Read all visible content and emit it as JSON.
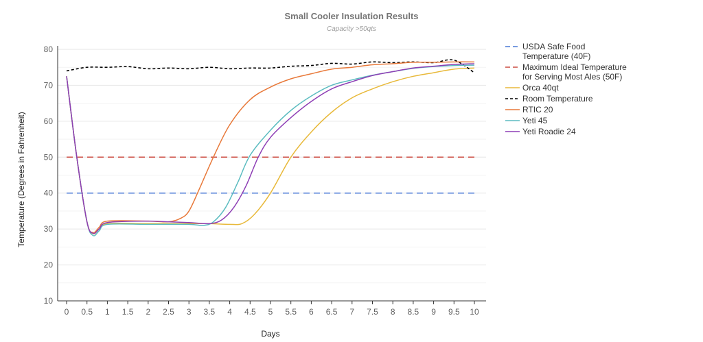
{
  "chart_data": {
    "type": "line",
    "title": "Small Cooler Insulation Results",
    "subtitle": "Capacity >50qts",
    "xlabel": "Days",
    "ylabel": "Temperature (Degrees in Fahrenheit)",
    "xlim": [
      0,
      10
    ],
    "ylim": [
      10,
      80
    ],
    "x_ticks": [
      "0",
      "0.5",
      "1",
      "1.5",
      "2",
      "2.5",
      "3",
      "3.5",
      "4",
      "4.5",
      "5",
      "5.5",
      "6",
      "6.5",
      "7",
      "7.5",
      "8",
      "8.5",
      "9",
      "9.5",
      "10"
    ],
    "y_ticks": [
      "10",
      "20",
      "30",
      "40",
      "50",
      "60",
      "70",
      "80"
    ],
    "grid": true,
    "legend_position": "right",
    "series": [
      {
        "name": "USDA Safe Food Temperature (40F)",
        "legend_lines": [
          "USDA Safe Food",
          "Temperature (40F)"
        ],
        "color": "#4a78d6",
        "dash": "dashed",
        "points": [
          [
            0,
            40
          ],
          [
            10,
            40
          ]
        ]
      },
      {
        "name": "Maximum Ideal Temperature for Serving Most Ales (50F)",
        "legend_lines": [
          "Maximum Ideal Temperature",
          "for Serving Most Ales (50F)"
        ],
        "color": "#cc4b40",
        "dash": "dashed",
        "points": [
          [
            0,
            50
          ],
          [
            10,
            50
          ]
        ]
      },
      {
        "name": "Orca 40qt",
        "legend_lines": [
          "Orca 40qt"
        ],
        "color": "#e8b93a",
        "dash": "solid",
        "points": [
          [
            0,
            72.5
          ],
          [
            0.25,
            50
          ],
          [
            0.5,
            32
          ],
          [
            0.65,
            28.7
          ],
          [
            0.8,
            30
          ],
          [
            1,
            31.5
          ],
          [
            2,
            31.5
          ],
          [
            3,
            31.5
          ],
          [
            3.5,
            31.5
          ],
          [
            4,
            31.3
          ],
          [
            4.3,
            31.5
          ],
          [
            4.6,
            34
          ],
          [
            5,
            40
          ],
          [
            5.5,
            50
          ],
          [
            6,
            57
          ],
          [
            6.5,
            62.5
          ],
          [
            7,
            66.5
          ],
          [
            7.5,
            69
          ],
          [
            8,
            71
          ],
          [
            8.5,
            72.5
          ],
          [
            9,
            73.5
          ],
          [
            9.5,
            74.5
          ],
          [
            10,
            74.8
          ]
        ]
      },
      {
        "name": "Room Temperature",
        "legend_lines": [
          "Room Temperature"
        ],
        "color": "#000000",
        "dash": "dotted",
        "points": [
          [
            0,
            74
          ],
          [
            0.5,
            75
          ],
          [
            1,
            75
          ],
          [
            1.5,
            75.2
          ],
          [
            2,
            74.6
          ],
          [
            2.5,
            74.8
          ],
          [
            3,
            74.6
          ],
          [
            3.5,
            75
          ],
          [
            4,
            74.6
          ],
          [
            4.5,
            74.8
          ],
          [
            5,
            74.8
          ],
          [
            5.5,
            75.3
          ],
          [
            6,
            75.5
          ],
          [
            6.5,
            76.1
          ],
          [
            7,
            75.9
          ],
          [
            7.5,
            76.5
          ],
          [
            8,
            76.3
          ],
          [
            8.5,
            76.5
          ],
          [
            9,
            76.3
          ],
          [
            9.5,
            77
          ],
          [
            10,
            73.5
          ]
        ]
      },
      {
        "name": "RTIC 20",
        "legend_lines": [
          "RTIC 20"
        ],
        "color": "#e8793a",
        "dash": "solid",
        "points": [
          [
            0,
            72.5
          ],
          [
            0.25,
            50
          ],
          [
            0.5,
            32
          ],
          [
            0.65,
            29
          ],
          [
            0.8,
            30.5
          ],
          [
            1,
            32.2
          ],
          [
            2,
            32.2
          ],
          [
            2.5,
            32
          ],
          [
            2.8,
            33
          ],
          [
            3,
            35
          ],
          [
            3.25,
            41
          ],
          [
            3.6,
            50
          ],
          [
            4,
            59
          ],
          [
            4.5,
            66
          ],
          [
            5,
            69.5
          ],
          [
            5.5,
            71.8
          ],
          [
            6,
            73.2
          ],
          [
            6.5,
            74.5
          ],
          [
            7,
            75
          ],
          [
            7.5,
            75.7
          ],
          [
            8,
            76
          ],
          [
            8.5,
            76.4
          ],
          [
            9,
            76.4
          ],
          [
            9.5,
            76.5
          ],
          [
            10,
            76.5
          ]
        ]
      },
      {
        "name": "Yeti 45",
        "legend_lines": [
          "Yeti 45"
        ],
        "color": "#5bbcc0",
        "dash": "solid",
        "points": [
          [
            0,
            72.5
          ],
          [
            0.25,
            50
          ],
          [
            0.5,
            32
          ],
          [
            0.65,
            28.2
          ],
          [
            0.8,
            29.5
          ],
          [
            1,
            31.3
          ],
          [
            2,
            31.3
          ],
          [
            3,
            31.3
          ],
          [
            3.35,
            31
          ],
          [
            3.6,
            32
          ],
          [
            3.9,
            36
          ],
          [
            4.2,
            43
          ],
          [
            4.5,
            50.5
          ],
          [
            5,
            57.5
          ],
          [
            5.5,
            63
          ],
          [
            6,
            67
          ],
          [
            6.5,
            70
          ],
          [
            7,
            71.5
          ],
          [
            7.5,
            72.8
          ],
          [
            8,
            73.8
          ],
          [
            8.5,
            74.7
          ],
          [
            9,
            75.2
          ],
          [
            9.5,
            75.5
          ],
          [
            10,
            75.6
          ]
        ]
      },
      {
        "name": "Yeti Roadie 24",
        "legend_lines": [
          "Yeti Roadie 24"
        ],
        "color": "#8e3fb5",
        "dash": "solid",
        "points": [
          [
            0,
            72.5
          ],
          [
            0.25,
            50
          ],
          [
            0.5,
            32
          ],
          [
            0.65,
            28.8
          ],
          [
            0.8,
            30
          ],
          [
            1,
            31.8
          ],
          [
            2,
            32.2
          ],
          [
            2.5,
            32
          ],
          [
            3,
            31.8
          ],
          [
            3.5,
            31.5
          ],
          [
            3.8,
            32.5
          ],
          [
            4.1,
            36
          ],
          [
            4.4,
            42
          ],
          [
            4.7,
            50
          ],
          [
            5,
            55.5
          ],
          [
            5.5,
            61
          ],
          [
            6,
            65.5
          ],
          [
            6.5,
            69
          ],
          [
            7,
            71
          ],
          [
            7.5,
            72.7
          ],
          [
            8,
            73.8
          ],
          [
            8.5,
            74.8
          ],
          [
            9,
            75.3
          ],
          [
            9.5,
            75.8
          ],
          [
            10,
            76
          ]
        ]
      }
    ]
  }
}
